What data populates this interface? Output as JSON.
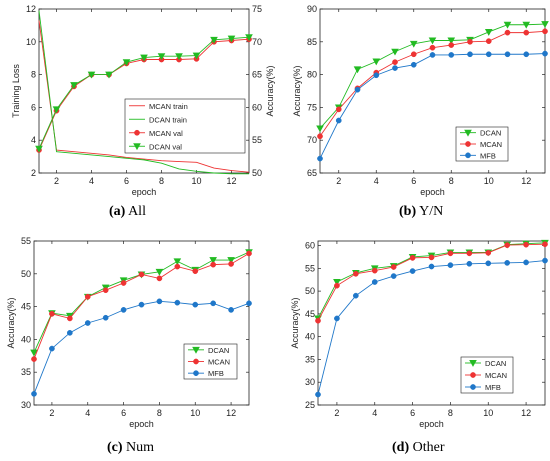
{
  "captions": [
    {
      "letter": "(a)",
      "text": "All"
    },
    {
      "letter": "(b)",
      "text": "Y/N"
    },
    {
      "letter": "(c)",
      "text": "Num"
    },
    {
      "letter": "(d)",
      "text": "Other"
    }
  ],
  "colors": {
    "dcan": "#22bb22",
    "mcan": "#ee3333",
    "mfb": "#1f77c9",
    "axis": "#222222"
  },
  "chart_data": [
    {
      "type": "line",
      "panel": "a",
      "xlabel": "epoch",
      "ylabel": "Training Loss",
      "ylabel_right": "Accuracy(%)",
      "xlim": [
        1,
        13
      ],
      "xticks": [
        2,
        4,
        6,
        8,
        10,
        12
      ],
      "ylim": [
        2,
        12
      ],
      "yticks": [
        2,
        4,
        6,
        8,
        10,
        12
      ],
      "ylim_right": [
        50,
        75
      ],
      "yticks_right": [
        50,
        55,
        60,
        65,
        70,
        75
      ],
      "legend": "center-right",
      "x": [
        1,
        2,
        3,
        4,
        5,
        6,
        7,
        8,
        9,
        10,
        11,
        12,
        13
      ],
      "series": [
        {
          "name": "MCAN train",
          "axis": "left",
          "marker": "none",
          "color": "#ee3333",
          "values": [
            11.3,
            3.4,
            3.3,
            3.2,
            3.1,
            2.95,
            2.85,
            2.75,
            2.7,
            2.65,
            2.3,
            2.15,
            2.05
          ]
        },
        {
          "name": "DCAN train",
          "axis": "left",
          "marker": "none",
          "color": "#22bb22",
          "values": [
            11.9,
            3.3,
            3.2,
            3.1,
            3.0,
            2.9,
            2.8,
            2.6,
            2.25,
            2.1,
            2.0,
            1.95,
            1.95
          ]
        },
        {
          "name": "MCAN val",
          "axis": "right",
          "marker": "circle",
          "color": "#ee3333",
          "values": [
            53.5,
            59.5,
            63.2,
            65.0,
            65.0,
            66.7,
            67.3,
            67.3,
            67.3,
            67.4,
            70.0,
            70.2,
            70.4
          ]
        },
        {
          "name": "DCAN val",
          "axis": "right",
          "marker": "triangle",
          "color": "#22bb22",
          "values": [
            53.7,
            59.7,
            63.4,
            65.0,
            65.0,
            66.9,
            67.6,
            67.8,
            67.8,
            67.9,
            70.3,
            70.5,
            70.7
          ]
        }
      ]
    },
    {
      "type": "line",
      "panel": "b",
      "xlabel": "epoch",
      "ylabel": "Accuracy(%)",
      "xlim": [
        1,
        13
      ],
      "xticks": [
        2,
        4,
        6,
        8,
        10,
        12
      ],
      "ylim": [
        65,
        90
      ],
      "yticks": [
        65,
        70,
        75,
        80,
        85,
        90
      ],
      "legend": "center-right",
      "x": [
        1,
        2,
        3,
        4,
        5,
        6,
        7,
        8,
        9,
        10,
        11,
        12,
        13
      ],
      "series": [
        {
          "name": "DCAN",
          "marker": "triangle",
          "color": "#22bb22",
          "values": [
            71.8,
            75.0,
            80.8,
            82.0,
            83.5,
            84.7,
            85.2,
            85.2,
            85.3,
            86.5,
            87.6,
            87.6,
            87.7
          ]
        },
        {
          "name": "MCAN",
          "marker": "circle",
          "color": "#ee3333",
          "values": [
            70.6,
            74.7,
            77.9,
            80.3,
            81.9,
            83.1,
            84.1,
            84.5,
            85.0,
            85.1,
            86.4,
            86.4,
            86.6
          ]
        },
        {
          "name": "MFB",
          "marker": "circle",
          "color": "#1f77c9",
          "values": [
            67.2,
            73.0,
            77.7,
            79.9,
            81.0,
            81.5,
            83.0,
            83.0,
            83.1,
            83.1,
            83.1,
            83.1,
            83.2
          ]
        }
      ]
    },
    {
      "type": "line",
      "panel": "c",
      "xlabel": "epoch",
      "ylabel": "Accuracy(%)",
      "xlim": [
        1,
        13
      ],
      "xticks": [
        2,
        4,
        6,
        8,
        10,
        12
      ],
      "ylim": [
        30,
        55
      ],
      "yticks": [
        30,
        35,
        40,
        45,
        50,
        55
      ],
      "legend": "center-right",
      "x": [
        1,
        2,
        3,
        4,
        5,
        6,
        7,
        8,
        9,
        10,
        11,
        12,
        13
      ],
      "series": [
        {
          "name": "DCAN",
          "marker": "triangle",
          "color": "#22bb22",
          "values": [
            38.0,
            44.0,
            43.6,
            46.5,
            47.9,
            49.0,
            49.9,
            50.3,
            51.9,
            50.6,
            52.1,
            52.1,
            53.3
          ]
        },
        {
          "name": "MCAN",
          "marker": "circle",
          "color": "#ee3333",
          "values": [
            37.0,
            43.9,
            43.2,
            46.5,
            47.5,
            48.6,
            49.9,
            49.3,
            51.1,
            50.4,
            51.4,
            51.5,
            53.1
          ]
        },
        {
          "name": "MFB",
          "marker": "circle",
          "color": "#1f77c9",
          "values": [
            31.7,
            38.6,
            41.0,
            42.5,
            43.3,
            44.5,
            45.3,
            45.8,
            45.6,
            45.3,
            45.5,
            44.5,
            45.5
          ]
        }
      ]
    },
    {
      "type": "line",
      "panel": "d",
      "xlabel": "epoch",
      "ylabel": "Accuracy(%)",
      "xlim": [
        1,
        13
      ],
      "xticks": [
        2,
        4,
        6,
        8,
        10,
        12
      ],
      "ylim": [
        25,
        61
      ],
      "yticks": [
        25,
        30,
        35,
        40,
        45,
        50,
        55,
        60
      ],
      "legend": "bottom-right",
      "x": [
        1,
        2,
        3,
        4,
        5,
        6,
        7,
        8,
        9,
        10,
        11,
        12,
        13
      ],
      "series": [
        {
          "name": "DCAN",
          "marker": "triangle",
          "color": "#22bb22",
          "values": [
            44.0,
            52.0,
            54.0,
            55.0,
            55.5,
            57.5,
            57.8,
            58.5,
            58.5,
            58.5,
            60.2,
            60.4,
            60.6
          ]
        },
        {
          "name": "MCAN",
          "marker": "circle",
          "color": "#ee3333",
          "values": [
            43.5,
            51.2,
            53.8,
            54.5,
            55.3,
            57.3,
            57.4,
            58.3,
            58.3,
            58.4,
            60.1,
            60.2,
            60.3
          ]
        },
        {
          "name": "MFB",
          "marker": "circle",
          "color": "#1f77c9",
          "values": [
            27.3,
            44.0,
            49.0,
            52.0,
            53.3,
            54.4,
            55.4,
            55.7,
            56.0,
            56.1,
            56.2,
            56.3,
            56.7
          ]
        }
      ]
    }
  ]
}
